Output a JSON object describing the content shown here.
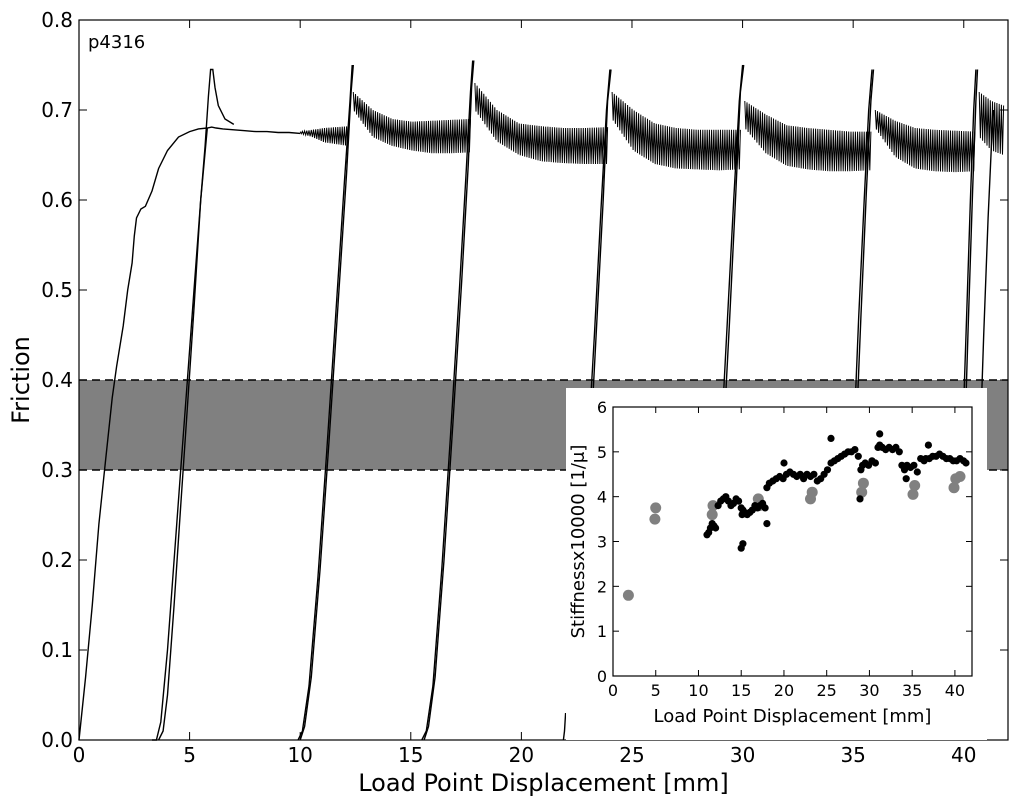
{
  "chart_data": [
    {
      "type": "line",
      "title": "",
      "annotation": "p4316",
      "xlabel": "Load Point Displacement [mm]",
      "ylabel": "Friction",
      "xlim": [
        0,
        42
      ],
      "ylim": [
        0,
        0.8
      ],
      "xticks": [
        0,
        5,
        10,
        15,
        20,
        25,
        30,
        35,
        40
      ],
      "yticks": [
        0.0,
        0.1,
        0.2,
        0.3,
        0.4,
        0.5,
        0.6,
        0.7,
        0.8
      ],
      "xtick_labels": [
        "0",
        "5",
        "10",
        "15",
        "20",
        "25",
        "30",
        "35",
        "40"
      ],
      "ytick_labels": [
        "0.0",
        "0.1",
        "0.2",
        "0.3",
        "0.4",
        "0.5",
        "0.6",
        "0.7",
        "0.8"
      ],
      "shaded_band": {
        "ymin": 0.3,
        "ymax": 0.4,
        "color": "#808080",
        "edge_style": "dashed"
      },
      "line_color": "#000000",
      "series": [
        {
          "x": [
            0,
            0.3,
            0.6,
            0.9,
            1.2,
            1.5,
            1.7,
            1.8,
            2.0,
            2.2,
            2.4,
            2.5,
            2.6,
            2.8,
            3.0,
            3.3,
            3.6,
            4.0,
            4.5,
            5.0,
            5.4,
            5.8,
            6.0,
            6.2,
            6.5,
            7.0,
            7.5,
            8.0,
            8.5,
            9.0,
            9.5,
            10.0
          ],
          "y": [
            0,
            0.07,
            0.15,
            0.24,
            0.31,
            0.38,
            0.415,
            0.43,
            0.46,
            0.5,
            0.53,
            0.56,
            0.58,
            0.59,
            0.593,
            0.61,
            0.635,
            0.655,
            0.67,
            0.676,
            0.679,
            0.68,
            0.681,
            0.68,
            0.679,
            0.678,
            0.677,
            0.676,
            0.676,
            0.675,
            0.675,
            0.674
          ]
        },
        {
          "x": [
            3.3,
            3.5,
            3.7,
            4.0,
            4.3,
            4.6,
            4.9,
            5.2,
            5.5,
            5.7,
            5.85,
            5.95,
            6.05,
            6.15,
            6.3,
            6.6,
            7.0
          ],
          "y": [
            0,
            0,
            0.02,
            0.1,
            0.2,
            0.3,
            0.4,
            0.5,
            0.6,
            0.66,
            0.715,
            0.745,
            0.745,
            0.725,
            0.705,
            0.69,
            0.684
          ]
        },
        {
          "x": [
            3.6,
            3.8,
            4.0,
            4.3,
            4.6,
            4.9,
            5.2,
            5.5,
            5.8
          ],
          "y": [
            0,
            0.01,
            0.05,
            0.15,
            0.26,
            0.37,
            0.48,
            0.6,
            0.68
          ]
        },
        {
          "x": [
            9.9,
            10.1,
            10.4,
            10.8,
            11.2,
            11.6,
            12.0,
            12.25,
            12.35
          ],
          "y": [
            0,
            0.01,
            0.06,
            0.18,
            0.32,
            0.47,
            0.62,
            0.71,
            0.75
          ]
        },
        {
          "x": [
            10.0,
            10.2,
            10.5,
            10.9,
            11.3,
            11.7,
            12.1,
            12.3,
            12.4
          ],
          "y": [
            0,
            0.015,
            0.07,
            0.19,
            0.33,
            0.48,
            0.63,
            0.72,
            0.75
          ]
        },
        {
          "x": [
            15.5,
            15.7,
            16.0,
            16.4,
            16.8,
            17.2,
            17.5,
            17.7,
            17.8
          ],
          "y": [
            0,
            0.01,
            0.06,
            0.19,
            0.34,
            0.5,
            0.63,
            0.72,
            0.755
          ]
        },
        {
          "x": [
            15.6,
            15.8,
            16.1,
            16.5,
            16.9,
            17.3,
            17.6,
            17.75,
            17.85
          ],
          "y": [
            0,
            0.015,
            0.07,
            0.2,
            0.35,
            0.51,
            0.64,
            0.725,
            0.755
          ]
        },
        {
          "x": [
            21.9,
            21.95,
            22.0
          ],
          "y": [
            0,
            0.01,
            0.03
          ]
        },
        {
          "x": [
            23.0,
            23.3,
            23.6,
            23.85,
            24.0
          ],
          "y": [
            0.32,
            0.45,
            0.59,
            0.7,
            0.745
          ]
        },
        {
          "x": [
            23.1,
            23.4,
            23.7,
            23.9,
            24.05
          ],
          "y": [
            0.32,
            0.46,
            0.6,
            0.71,
            0.745
          ]
        },
        {
          "x": [
            29.0,
            29.3,
            29.6,
            29.85,
            30.0
          ],
          "y": [
            0.32,
            0.46,
            0.6,
            0.71,
            0.75
          ]
        },
        {
          "x": [
            29.1,
            29.4,
            29.7,
            29.9,
            30.05
          ],
          "y": [
            0.32,
            0.46,
            0.61,
            0.72,
            0.75
          ]
        },
        {
          "x": [
            35.0,
            35.25,
            35.5,
            35.7,
            35.85
          ],
          "y": [
            0.32,
            0.47,
            0.6,
            0.7,
            0.745
          ]
        },
        {
          "x": [
            35.1,
            35.35,
            35.6,
            35.8,
            35.92
          ],
          "y": [
            0.32,
            0.47,
            0.61,
            0.71,
            0.745
          ]
        },
        {
          "x": [
            39.9,
            40.1,
            40.3,
            40.45,
            40.55
          ],
          "y": [
            0.3,
            0.45,
            0.6,
            0.7,
            0.745
          ]
        },
        {
          "x": [
            40.0,
            40.2,
            40.4,
            40.55,
            40.62
          ],
          "y": [
            0.3,
            0.46,
            0.61,
            0.71,
            0.745
          ]
        },
        {
          "x": [
            40.7,
            40.9,
            41.1,
            41.25,
            41.35
          ],
          "y": [
            0.3,
            0.45,
            0.58,
            0.66,
            0.7
          ]
        }
      ],
      "stick_slip_bands": [
        {
          "x_start": 10.0,
          "x_end": 12.2,
          "upper": [
            0.676,
            0.678,
            0.68,
            0.681,
            0.682
          ],
          "lower": [
            0.674,
            0.67,
            0.664,
            0.662,
            0.66
          ]
        },
        {
          "x_start": 12.4,
          "x_end": 17.7,
          "upper": [
            0.72,
            0.7,
            0.69,
            0.687,
            0.688,
            0.689,
            0.69
          ],
          "lower": [
            0.7,
            0.67,
            0.66,
            0.655,
            0.652,
            0.652,
            0.653
          ]
        },
        {
          "x_start": 17.9,
          "x_end": 23.9,
          "upper": [
            0.73,
            0.7,
            0.685,
            0.682,
            0.68,
            0.68,
            0.681
          ],
          "lower": [
            0.7,
            0.665,
            0.65,
            0.643,
            0.641,
            0.64,
            0.64
          ]
        },
        {
          "x_start": 24.1,
          "x_end": 29.9,
          "upper": [
            0.72,
            0.7,
            0.685,
            0.68,
            0.678,
            0.678,
            0.678
          ],
          "lower": [
            0.69,
            0.655,
            0.64,
            0.635,
            0.634,
            0.633,
            0.634
          ]
        },
        {
          "x_start": 30.1,
          "x_end": 35.8,
          "upper": [
            0.71,
            0.695,
            0.683,
            0.68,
            0.678,
            0.676,
            0.676
          ],
          "lower": [
            0.68,
            0.652,
            0.638,
            0.634,
            0.632,
            0.632,
            0.633
          ]
        },
        {
          "x_start": 36.0,
          "x_end": 40.5,
          "upper": [
            0.7,
            0.688,
            0.68,
            0.678,
            0.677,
            0.676
          ],
          "lower": [
            0.68,
            0.648,
            0.635,
            0.632,
            0.631,
            0.632
          ]
        },
        {
          "x_start": 40.7,
          "x_end": 41.8,
          "upper": [
            0.72,
            0.71,
            0.705
          ],
          "lower": [
            0.67,
            0.655,
            0.65
          ]
        }
      ]
    },
    {
      "type": "scatter",
      "title": "",
      "xlabel": "Load Point Displacement [mm]",
      "ylabel": "Stiffnessx10000 [1/μ]",
      "xlim": [
        0,
        42
      ],
      "ylim": [
        0,
        6
      ],
      "xticks": [
        0,
        5,
        10,
        15,
        20,
        25,
        30,
        35,
        40
      ],
      "yticks": [
        0,
        1,
        2,
        3,
        4,
        5,
        6
      ],
      "xtick_labels": [
        "0",
        "5",
        "10",
        "15",
        "20",
        "25",
        "30",
        "35",
        "40"
      ],
      "ytick_labels": [
        "0",
        "1",
        "2",
        "3",
        "4",
        "5",
        "6"
      ],
      "series": [
        {
          "color": "#808080",
          "x": [
            1.8,
            4.9,
            5.0,
            11.6,
            11.7,
            17.0,
            17.1,
            23.1,
            23.3,
            29.1,
            29.3,
            35.1,
            35.3,
            39.9,
            40.1,
            40.6
          ],
          "y": [
            1.8,
            3.5,
            3.75,
            3.6,
            3.8,
            3.95,
            3.8,
            3.95,
            4.1,
            4.1,
            4.3,
            4.05,
            4.25,
            4.2,
            4.4,
            4.45
          ]
        },
        {
          "color": "#000000",
          "x": [
            11.0,
            11.2,
            11.4,
            11.6,
            11.8,
            12.0,
            12.3,
            12.6,
            12.9,
            13.2,
            13.5,
            13.8,
            14.1,
            14.4,
            14.7,
            15.0,
            15.1,
            15.2,
            15.4,
            15.7,
            16.0,
            16.3,
            16.6,
            16.9,
            17.2,
            17.5,
            17.8,
            18.0,
            18.3,
            18.7,
            19.1,
            19.5,
            19.9,
            20.3,
            20.7,
            21.1,
            21.5,
            21.9,
            22.3,
            22.7,
            23.1,
            23.5,
            23.9,
            24.3,
            24.7,
            25.1,
            25.5,
            25.9,
            26.3,
            26.7,
            27.1,
            27.5,
            27.9,
            28.3,
            28.7,
            29.0,
            29.2,
            29.5,
            29.9,
            30.3,
            30.7,
            31.0,
            31.2,
            31.5,
            31.9,
            32.3,
            32.7,
            33.1,
            33.5,
            33.8,
            34.1,
            34.4,
            34.8,
            35.2,
            35.6,
            36.0,
            36.4,
            36.6,
            37.0,
            37.4,
            37.8,
            38.2,
            38.6,
            39.0,
            39.4,
            39.8,
            40.2,
            40.6,
            41.0,
            41.3,
            15.0,
            15.2,
            18.0,
            20.0,
            25.5,
            28.9,
            31.2,
            34.3,
            36.9
          ],
          "y": [
            3.15,
            3.2,
            3.3,
            3.4,
            3.35,
            3.3,
            3.8,
            3.9,
            3.95,
            4.0,
            3.9,
            3.8,
            3.85,
            3.95,
            3.9,
            3.75,
            3.6,
            3.7,
            3.65,
            3.6,
            3.65,
            3.7,
            3.8,
            3.75,
            3.8,
            3.85,
            3.75,
            4.2,
            4.3,
            4.35,
            4.4,
            4.45,
            4.4,
            4.5,
            4.55,
            4.5,
            4.45,
            4.5,
            4.4,
            4.5,
            4.45,
            4.5,
            4.35,
            4.4,
            4.5,
            4.6,
            4.75,
            4.8,
            4.85,
            4.9,
            4.95,
            5.0,
            5.0,
            5.05,
            4.9,
            4.6,
            4.7,
            4.75,
            4.7,
            4.8,
            4.75,
            5.1,
            5.15,
            5.1,
            5.05,
            5.1,
            5.05,
            5.1,
            5.0,
            4.7,
            4.6,
            4.7,
            4.65,
            4.7,
            4.55,
            4.85,
            4.8,
            4.85,
            4.85,
            4.9,
            4.9,
            4.95,
            4.9,
            4.85,
            4.85,
            4.8,
            4.8,
            4.85,
            4.8,
            4.75,
            2.85,
            2.95,
            3.4,
            4.75,
            5.3,
            3.95,
            5.4,
            4.4,
            5.15
          ]
        }
      ]
    }
  ]
}
